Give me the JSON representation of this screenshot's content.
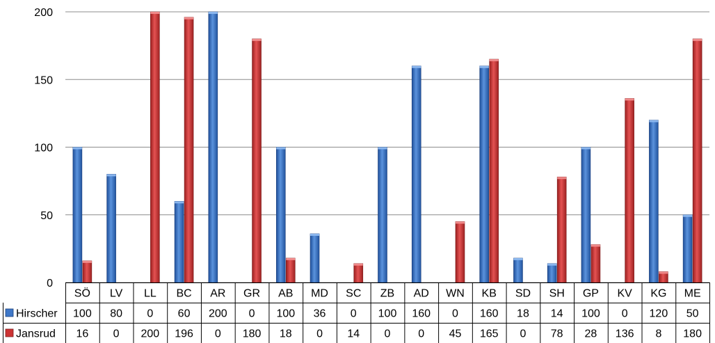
{
  "chart_data": {
    "type": "bar",
    "title": "",
    "xlabel": "",
    "ylabel": "",
    "ylim": [
      0,
      200
    ],
    "yticks": [
      0,
      50,
      100,
      150,
      200
    ],
    "grid": true,
    "legend": "bottom-left data table",
    "categories": [
      "SÖ",
      "LV",
      "LL",
      "BC",
      "AR",
      "GR",
      "AB",
      "MD",
      "SC",
      "ZB",
      "AD",
      "WN",
      "KB",
      "SD",
      "SH",
      "GP",
      "KV",
      "KG",
      "ME"
    ],
    "series": [
      {
        "name": "Hirscher",
        "color": "#3f78c8",
        "values": [
          100,
          80,
          0,
          60,
          200,
          0,
          100,
          36,
          0,
          100,
          160,
          0,
          160,
          18,
          14,
          100,
          0,
          120,
          50
        ]
      },
      {
        "name": "Jansrud",
        "color": "#cc3333",
        "values": [
          16,
          0,
          200,
          196,
          0,
          180,
          18,
          0,
          14,
          0,
          0,
          45,
          165,
          0,
          78,
          28,
          136,
          8,
          180
        ]
      }
    ]
  }
}
